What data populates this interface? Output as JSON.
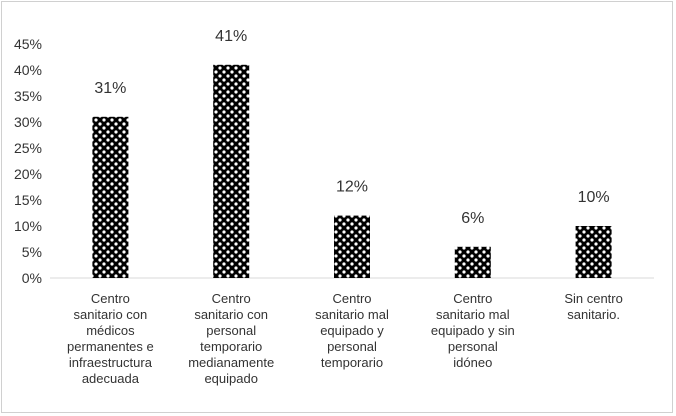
{
  "chart_data": {
    "type": "bar",
    "categories": [
      [
        "Centro",
        "sanitario con",
        "médicos",
        "permanentes e",
        "infraestructura",
        "adecuada"
      ],
      [
        "Centro",
        "sanitario con",
        "personal",
        "temporario",
        "medianamente",
        "equipado"
      ],
      [
        "Centro",
        "sanitario mal",
        "equipado y",
        "personal",
        "temporario"
      ],
      [
        "Centro",
        "sanitario mal",
        "equipado y sin",
        "personal",
        "idóneo"
      ],
      [
        "Sin centro",
        "sanitario."
      ]
    ],
    "values": [
      31,
      41,
      12,
      6,
      10
    ],
    "data_labels": [
      "31%",
      "41%",
      "12%",
      "6%",
      "10%"
    ],
    "yticks": [
      "0%",
      "5%",
      "10%",
      "15%",
      "20%",
      "25%",
      "30%",
      "35%",
      "40%",
      "45%"
    ],
    "ylim": [
      0,
      45
    ],
    "grid": false,
    "pattern": "checkered-circles",
    "colors": {
      "bar_fill": "#000000",
      "bar_pattern_bg": "#ffffff",
      "axis": "#d9d9d9",
      "text": "#333333"
    }
  }
}
